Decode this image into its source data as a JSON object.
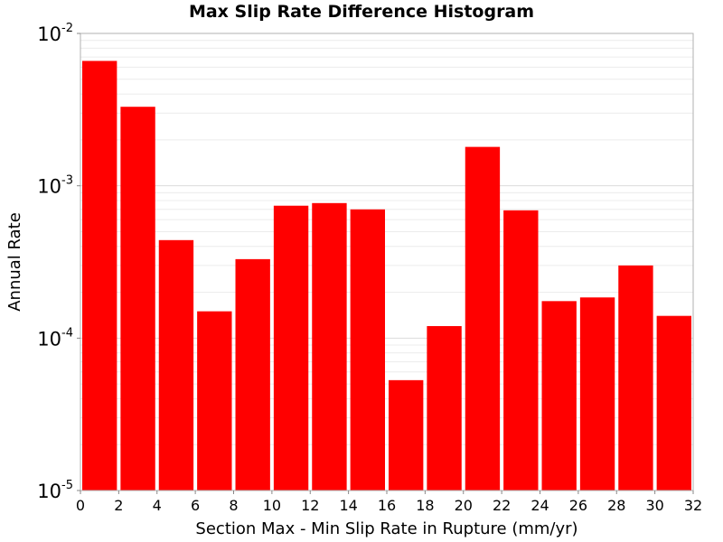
{
  "chart_data": {
    "type": "bar",
    "title": "Max Slip Rate Difference Histogram",
    "xlabel": "Section Max - Min Slip Rate in Rupture (mm/yr)",
    "ylabel": "Annual Rate",
    "y_scale": "log",
    "xlim": [
      0,
      32
    ],
    "ylim": [
      1e-05,
      0.01
    ],
    "x_ticks": [
      "0",
      "2",
      "4",
      "6",
      "8",
      "10",
      "12",
      "14",
      "16",
      "18",
      "20",
      "22",
      "24",
      "26",
      "28",
      "30",
      "32"
    ],
    "y_ticks": [
      {
        "base": "10",
        "exp": "-5",
        "value": 1e-05
      },
      {
        "base": "10",
        "exp": "-4",
        "value": 0.0001
      },
      {
        "base": "10",
        "exp": "-3",
        "value": 0.001
      },
      {
        "base": "10",
        "exp": "-2",
        "value": 0.01
      }
    ],
    "grid": true,
    "bar_color": "#ff0000",
    "bin_width": 2,
    "bins": [
      {
        "x0": 0,
        "x1": 2,
        "value": 0.0066
      },
      {
        "x0": 2,
        "x1": 4,
        "value": 0.0033
      },
      {
        "x0": 4,
        "x1": 6,
        "value": 0.00044
      },
      {
        "x0": 6,
        "x1": 8,
        "value": 0.00015
      },
      {
        "x0": 8,
        "x1": 10,
        "value": 0.00033
      },
      {
        "x0": 10,
        "x1": 12,
        "value": 0.00074
      },
      {
        "x0": 12,
        "x1": 14,
        "value": 0.00077
      },
      {
        "x0": 14,
        "x1": 16,
        "value": 0.0007
      },
      {
        "x0": 16,
        "x1": 18,
        "value": 5.3e-05
      },
      {
        "x0": 18,
        "x1": 20,
        "value": 0.00012
      },
      {
        "x0": 20,
        "x1": 22,
        "value": 0.0018
      },
      {
        "x0": 22,
        "x1": 24,
        "value": 0.00069
      },
      {
        "x0": 24,
        "x1": 26,
        "value": 0.000175
      },
      {
        "x0": 26,
        "x1": 28,
        "value": 0.000185
      },
      {
        "x0": 28,
        "x1": 30,
        "value": 0.0003
      },
      {
        "x0": 30,
        "x1": 32,
        "value": 0.00014
      }
    ]
  }
}
